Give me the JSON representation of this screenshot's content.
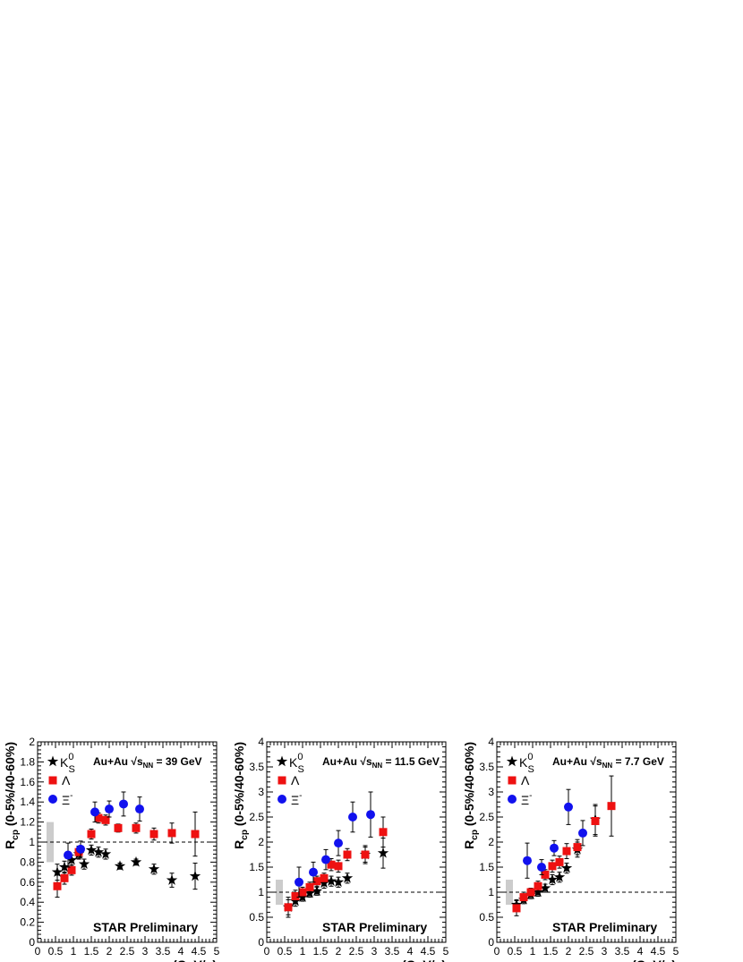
{
  "colors": {
    "k0s": "#000000",
    "lambda": "#ee1111",
    "xi": "#1111ee",
    "syst_band": "#cccccc",
    "reference_line": "#000000"
  },
  "chart_data": [
    {
      "type": "scatter",
      "system_prefix": "Au+Au ",
      "energy_value": " = 39 GeV",
      "preliminary": "STAR Preliminary",
      "xlabel": "p_T (GeV/c)",
      "ylabel": "R_cp (0-5%/40-60%)",
      "xlim": [
        0,
        5
      ],
      "ylim": [
        0,
        2
      ],
      "x_ticks": [
        "0",
        "0.5",
        "1",
        "1.5",
        "2",
        "2.5",
        "3",
        "3.5",
        "4",
        "4.5",
        "5"
      ],
      "y_ticks": [
        "0",
        "0.2",
        "0.4",
        "0.6",
        "0.8",
        "1",
        "1.2",
        "1.4",
        "1.6",
        "1.8",
        "2"
      ],
      "reference_line": 1,
      "syst_band": {
        "x": 0.35,
        "y_low": 0.8,
        "y_high": 1.2
      },
      "legend": [
        "K0S",
        "Λ",
        "Ξ-"
      ],
      "series": [
        {
          "name": "K0S",
          "marker": "star",
          "points": [
            [
              0.55,
              0.7,
              0.08
            ],
            [
              0.75,
              0.75,
              0.06
            ],
            [
              0.95,
              0.82,
              0.05
            ],
            [
              1.15,
              0.88,
              0.05
            ],
            [
              1.3,
              0.78,
              0.05
            ],
            [
              1.5,
              0.92,
              0.05
            ],
            [
              1.7,
              0.9,
              0.05
            ],
            [
              1.9,
              0.88,
              0.05
            ],
            [
              2.3,
              0.76,
              0.03
            ],
            [
              2.75,
              0.8,
              0.03
            ],
            [
              3.25,
              0.73,
              0.05
            ],
            [
              3.75,
              0.62,
              0.07
            ],
            [
              4.4,
              0.66,
              0.13
            ]
          ]
        },
        {
          "name": "Λ",
          "marker": "square",
          "points": [
            [
              0.55,
              0.56,
              0.11
            ],
            [
              0.75,
              0.64,
              0.06
            ],
            [
              0.95,
              0.72,
              0.05
            ],
            [
              1.15,
              0.9,
              0.06
            ],
            [
              1.5,
              1.08,
              0.05
            ],
            [
              1.7,
              1.24,
              0.05
            ],
            [
              1.9,
              1.22,
              0.05
            ],
            [
              2.25,
              1.14,
              0.04
            ],
            [
              2.75,
              1.14,
              0.05
            ],
            [
              3.25,
              1.08,
              0.06
            ],
            [
              3.75,
              1.09,
              0.1
            ],
            [
              4.4,
              1.08,
              0.22
            ]
          ]
        },
        {
          "name": "Ξ-",
          "marker": "circle",
          "points": [
            [
              0.85,
              0.87,
              0.12
            ],
            [
              1.2,
              0.93,
              0.08
            ],
            [
              1.6,
              1.3,
              0.1
            ],
            [
              2.0,
              1.33,
              0.08
            ],
            [
              2.4,
              1.38,
              0.12
            ],
            [
              2.85,
              1.33,
              0.12
            ]
          ]
        }
      ]
    },
    {
      "type": "scatter",
      "system_prefix": "Au+Au ",
      "energy_value": " = 11.5 GeV",
      "preliminary": "STAR Preliminary",
      "xlabel": "p_T (GeV/c)",
      "ylabel": "R_cp (0-5%/40-60%)",
      "xlim": [
        0,
        5
      ],
      "ylim": [
        0,
        4
      ],
      "x_ticks": [
        "0",
        "0.5",
        "1",
        "1.5",
        "2",
        "2.5",
        "3",
        "3.5",
        "4",
        "4.5",
        "5"
      ],
      "y_ticks": [
        "0",
        "0.5",
        "1",
        "1.5",
        "2",
        "2.5",
        "3",
        "3.5",
        "4"
      ],
      "reference_line": 1,
      "syst_band": {
        "x": 0.35,
        "y_low": 0.75,
        "y_high": 1.25
      },
      "legend": [
        "K0S",
        "Λ",
        "Ξ-"
      ],
      "series": [
        {
          "name": "K0S",
          "marker": "star",
          "points": [
            [
              0.6,
              0.7,
              0.15
            ],
            [
              0.8,
              0.82,
              0.1
            ],
            [
              1.0,
              0.9,
              0.08
            ],
            [
              1.2,
              0.98,
              0.08
            ],
            [
              1.4,
              1.02,
              0.08
            ],
            [
              1.6,
              1.18,
              0.1
            ],
            [
              1.8,
              1.22,
              0.1
            ],
            [
              2.0,
              1.2,
              0.1
            ],
            [
              2.25,
              1.28,
              0.1
            ],
            [
              2.75,
              1.75,
              0.15
            ],
            [
              3.25,
              1.78,
              0.3
            ]
          ]
        },
        {
          "name": "Λ",
          "marker": "square",
          "points": [
            [
              0.6,
              0.7,
              0.2
            ],
            [
              0.8,
              0.92,
              0.12
            ],
            [
              1.0,
              1.0,
              0.1
            ],
            [
              1.2,
              1.1,
              0.1
            ],
            [
              1.4,
              1.22,
              0.1
            ],
            [
              1.6,
              1.28,
              0.1
            ],
            [
              1.8,
              1.55,
              0.12
            ],
            [
              2.0,
              1.52,
              0.12
            ],
            [
              2.25,
              1.75,
              0.12
            ],
            [
              2.75,
              1.75,
              0.18
            ],
            [
              3.25,
              2.2,
              0.3
            ]
          ]
        },
        {
          "name": "Ξ-",
          "marker": "circle",
          "points": [
            [
              0.9,
              1.2,
              0.3
            ],
            [
              1.3,
              1.4,
              0.2
            ],
            [
              1.65,
              1.65,
              0.2
            ],
            [
              2.0,
              1.98,
              0.25
            ],
            [
              2.4,
              2.5,
              0.3
            ],
            [
              2.9,
              2.55,
              0.45
            ]
          ]
        }
      ]
    },
    {
      "type": "scatter",
      "system_prefix": "Au+Au ",
      "energy_value": " = 7.7 GeV",
      "preliminary": "STAR Preliminary",
      "xlabel": "p_T (GeV/c)",
      "ylabel": "R_cp (0-5%/40-60%)",
      "xlim": [
        0,
        5
      ],
      "ylim": [
        0,
        4
      ],
      "x_ticks": [
        "0",
        "0.5",
        "1",
        "1.5",
        "2",
        "2.5",
        "3",
        "3.5",
        "4",
        "4.5",
        "5"
      ],
      "y_ticks": [
        "0",
        "0.5",
        "1",
        "1.5",
        "2",
        "2.5",
        "3",
        "3.5",
        "4"
      ],
      "reference_line": 1,
      "syst_band": {
        "x": 0.35,
        "y_low": 0.75,
        "y_high": 1.25
      },
      "legend": [
        "K0S",
        "Λ",
        "Ξ-"
      ],
      "series": [
        {
          "name": "K0S",
          "marker": "star",
          "points": [
            [
              0.55,
              0.75,
              0.1
            ],
            [
              0.75,
              0.85,
              0.08
            ],
            [
              0.95,
              0.95,
              0.08
            ],
            [
              1.15,
              1.0,
              0.08
            ],
            [
              1.35,
              1.08,
              0.08
            ],
            [
              1.55,
              1.25,
              0.1
            ],
            [
              1.75,
              1.3,
              0.1
            ],
            [
              1.95,
              1.48,
              0.1
            ],
            [
              2.25,
              1.85,
              0.15
            ],
            [
              2.75,
              2.45,
              0.3
            ]
          ]
        },
        {
          "name": "Λ",
          "marker": "square",
          "points": [
            [
              0.55,
              0.68,
              0.15
            ],
            [
              0.75,
              0.9,
              0.1
            ],
            [
              0.95,
              1.0,
              0.08
            ],
            [
              1.15,
              1.12,
              0.1
            ],
            [
              1.35,
              1.35,
              0.1
            ],
            [
              1.55,
              1.52,
              0.12
            ],
            [
              1.75,
              1.6,
              0.12
            ],
            [
              1.95,
              1.82,
              0.15
            ],
            [
              2.25,
              1.9,
              0.15
            ],
            [
              2.75,
              2.42,
              0.3
            ],
            [
              3.2,
              2.72,
              0.6
            ]
          ]
        },
        {
          "name": "Ξ-",
          "marker": "circle",
          "points": [
            [
              0.85,
              1.63,
              0.35
            ],
            [
              1.25,
              1.5,
              0.15
            ],
            [
              1.6,
              1.88,
              0.15
            ],
            [
              2.0,
              2.7,
              0.35
            ],
            [
              2.4,
              2.18,
              0.25
            ]
          ]
        }
      ]
    }
  ]
}
